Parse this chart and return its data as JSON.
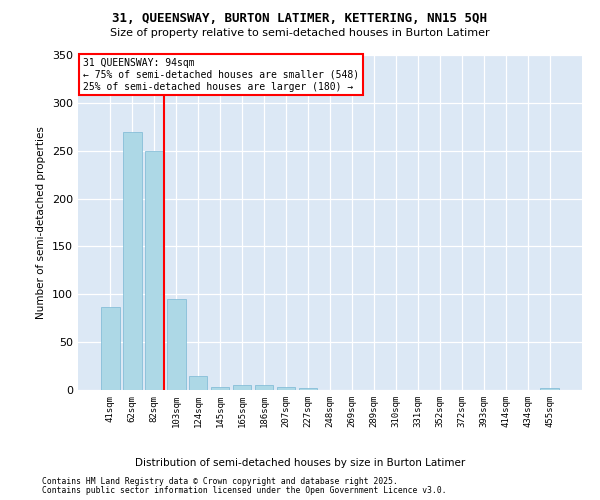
{
  "title1": "31, QUEENSWAY, BURTON LATIMER, KETTERING, NN15 5QH",
  "title2": "Size of property relative to semi-detached houses in Burton Latimer",
  "xlabel": "Distribution of semi-detached houses by size in Burton Latimer",
  "ylabel": "Number of semi-detached properties",
  "categories": [
    "41sqm",
    "62sqm",
    "82sqm",
    "103sqm",
    "124sqm",
    "145sqm",
    "165sqm",
    "186sqm",
    "207sqm",
    "227sqm",
    "248sqm",
    "269sqm",
    "289sqm",
    "310sqm",
    "331sqm",
    "352sqm",
    "372sqm",
    "393sqm",
    "414sqm",
    "434sqm",
    "455sqm"
  ],
  "values": [
    87,
    270,
    250,
    95,
    15,
    3,
    5,
    5,
    3,
    2,
    0,
    0,
    0,
    0,
    0,
    0,
    0,
    0,
    0,
    0,
    2
  ],
  "bar_color": "#add8e6",
  "bar_edge_color": "#7ab8d4",
  "vline_color": "red",
  "vline_index": 2,
  "annotation_title": "31 QUEENSWAY: 94sqm",
  "annotation_line1": "← 75% of semi-detached houses are smaller (548)",
  "annotation_line2": "25% of semi-detached houses are larger (180) →",
  "ylim": [
    0,
    350
  ],
  "yticks": [
    0,
    50,
    100,
    150,
    200,
    250,
    300,
    350
  ],
  "background_color": "#dce8f5",
  "footer1": "Contains HM Land Registry data © Crown copyright and database right 2025.",
  "footer2": "Contains public sector information licensed under the Open Government Licence v3.0."
}
